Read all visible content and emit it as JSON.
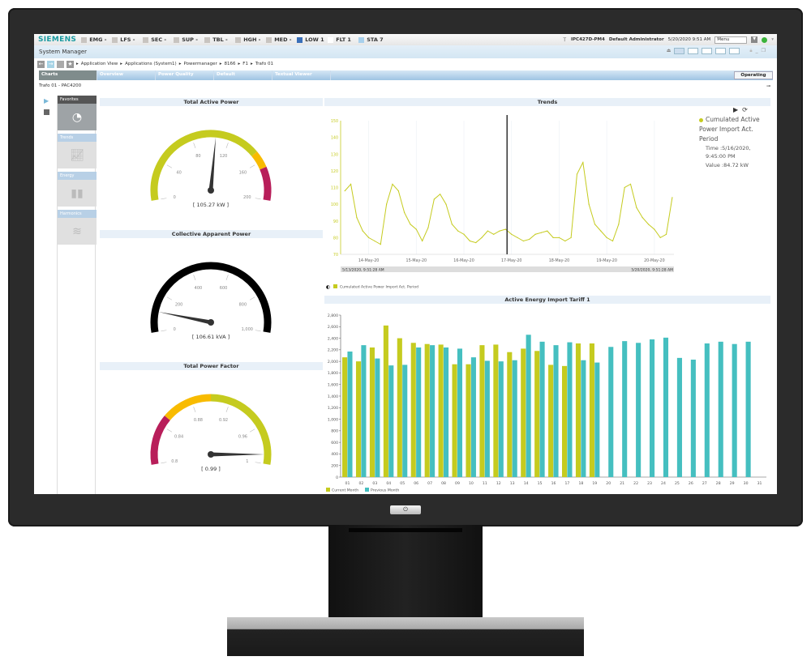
{
  "topbar": {
    "brand": "SIEMENS",
    "alarms": [
      {
        "label": "EMG -",
        "color": "#c8c4c0"
      },
      {
        "label": "LFS -",
        "color": "#c8c4c0"
      },
      {
        "label": "SEC -",
        "color": "#c8c4c0"
      },
      {
        "label": "SUP -",
        "color": "#c8c4c0"
      },
      {
        "label": "TBL -",
        "color": "#c8c4c0"
      },
      {
        "label": "HGH -",
        "color": "#c8c4c0"
      },
      {
        "label": "MED -",
        "color": "#c8c4c0"
      },
      {
        "label": "LOW 1",
        "color": "#3a6fb8"
      },
      {
        "label": "FLT 1",
        "color": "#ffffff"
      },
      {
        "label": "STA 7",
        "color": "#a8d0ec"
      }
    ],
    "station": "IPC427D-PM4",
    "user": "Default Administrator",
    "datetime": "5/20/2020 9:51 AM",
    "menu": "Menu"
  },
  "window": {
    "title": "System Manager"
  },
  "breadcrumb": [
    "Application View",
    "Applications (System1)",
    "Powermanager",
    "8166",
    "F1",
    "Trafo 01"
  ],
  "tabs": [
    {
      "label": "Charts",
      "active": true
    },
    {
      "label": "Overview"
    },
    {
      "label": "Power Quality"
    },
    {
      "label": "Default"
    },
    {
      "label": "Textual Viewer"
    }
  ],
  "status_button": "Operating",
  "device": "Trafo 01 - PAC4200",
  "sidebar": [
    {
      "label": "Favorites",
      "icon": "gauge-icon",
      "selected": true
    },
    {
      "label": "Trends",
      "icon": "trend-chart-icon"
    },
    {
      "label": "Energy",
      "icon": "bar-chart-icon"
    },
    {
      "label": "Harmonics",
      "icon": "waveform-icon"
    }
  ],
  "gauges": [
    {
      "title": "Total Active Power",
      "min": 0,
      "max": 200,
      "ticks": [
        "0",
        "40",
        "80",
        "120",
        "160",
        "200"
      ],
      "value": 105.27,
      "readout": "[ 105.27 kW ]",
      "bands": [
        {
          "from": 0,
          "to": 150,
          "color": "#c5cb1f"
        },
        {
          "from": 150,
          "to": 167,
          "color": "#f8bb00"
        },
        {
          "from": 167,
          "to": 200,
          "color": "#b81e5a"
        }
      ]
    },
    {
      "title": "Collective Apparent Power",
      "min": 0,
      "max": 1000,
      "ticks": [
        "0",
        "200",
        "400",
        "600",
        "800",
        "1,000"
      ],
      "value": 106.61,
      "readout": "[ 106.61 kVA ]",
      "bands": [
        {
          "from": 0,
          "to": 1000,
          "color": "#000000"
        }
      ]
    },
    {
      "title": "Total Power Factor",
      "min": 0.8,
      "max": 1,
      "ticks": [
        "0.8",
        "0.84",
        "0.88",
        "0.92",
        "0.96",
        "1"
      ],
      "value": 0.99,
      "readout": "[ 0.99 ]",
      "bands": [
        {
          "from": 0.8,
          "to": 0.85,
          "color": "#b81e5a"
        },
        {
          "from": 0.85,
          "to": 0.9,
          "color": "#f8bb00"
        },
        {
          "from": 0.9,
          "to": 1,
          "color": "#c5cb1f"
        }
      ]
    }
  ],
  "chart_data": [
    {
      "type": "line",
      "title": "Trends",
      "ylim": [
        70,
        150
      ],
      "yticks": [
        "70",
        "80",
        "90",
        "100",
        "110",
        "120",
        "130",
        "140",
        "150"
      ],
      "xticks": [
        "14-May-20",
        "15-May-20",
        "16-May-20",
        "17-May-20",
        "18-May-20",
        "19-May-20",
        "20-May-20"
      ],
      "range_start": "5/13/2020, 9:51:28 AM",
      "range_end": "5/20/2020, 9:51:28 AM",
      "series": [
        {
          "name": "Cumulated Active Power Import Act. Period",
          "color": "#c5cb1f",
          "start": "2020-05-13T12:00",
          "step_hours": 3,
          "values": [
            108,
            112,
            92,
            84,
            80,
            78,
            76,
            100,
            112,
            108,
            95,
            88,
            85,
            78,
            86,
            103,
            106,
            100,
            88,
            84,
            82,
            78,
            77,
            80,
            84,
            82,
            84,
            85,
            82,
            80,
            78,
            79,
            82,
            83,
            84,
            80,
            80,
            78,
            80,
            118,
            125,
            100,
            88,
            84,
            80,
            78,
            88,
            110,
            112,
            98,
            92,
            88,
            85,
            80,
            82,
            104
          ]
        }
      ],
      "cursor": {
        "time": "2020-05-16T21:45",
        "legend_title": "Cumulated Active Power Import Act. Period",
        "time_label": "Time :5/16/2020, 9:45:00 PM",
        "value_label": "Value :84.72 kW"
      },
      "legend": "bottom-left"
    },
    {
      "type": "bar",
      "title": "Active Energy Import Tariff 1",
      "ylim": [
        0,
        2800
      ],
      "yticks": [
        "0",
        "200",
        "400",
        "600",
        "800",
        "1,000",
        "1,200",
        "1,400",
        "1,600",
        "1,800",
        "2,000",
        "2,200",
        "2,400",
        "2,600",
        "2,800"
      ],
      "categories": [
        "01",
        "02",
        "03",
        "04",
        "05",
        "06",
        "07",
        "08",
        "09",
        "10",
        "11",
        "12",
        "13",
        "14",
        "15",
        "16",
        "17",
        "18",
        "19",
        "20",
        "21",
        "22",
        "23",
        "24",
        "25",
        "26",
        "27",
        "28",
        "29",
        "30",
        "31"
      ],
      "series": [
        {
          "name": "Current Month",
          "color": "#c5cb1f",
          "values": [
            2070,
            2000,
            2240,
            2620,
            2400,
            2320,
            2300,
            2290,
            1950,
            1950,
            2280,
            2290,
            2160,
            2220,
            2180,
            1940,
            1920,
            2310,
            2310,
            null,
            null,
            null,
            null,
            null,
            null,
            null,
            null,
            null,
            null,
            null,
            null
          ]
        },
        {
          "name": "Previous Month",
          "color": "#45bfc0",
          "values": [
            2170,
            2280,
            2050,
            1930,
            1940,
            2240,
            2280,
            2240,
            2220,
            2070,
            2010,
            2000,
            2020,
            2460,
            2340,
            2280,
            2330,
            2020,
            1980,
            2250,
            2350,
            2320,
            2380,
            2410,
            2060,
            2030,
            2310,
            2340,
            2300,
            2340,
            null
          ]
        }
      ],
      "legend": "bottom-left",
      "grid": false
    }
  ]
}
